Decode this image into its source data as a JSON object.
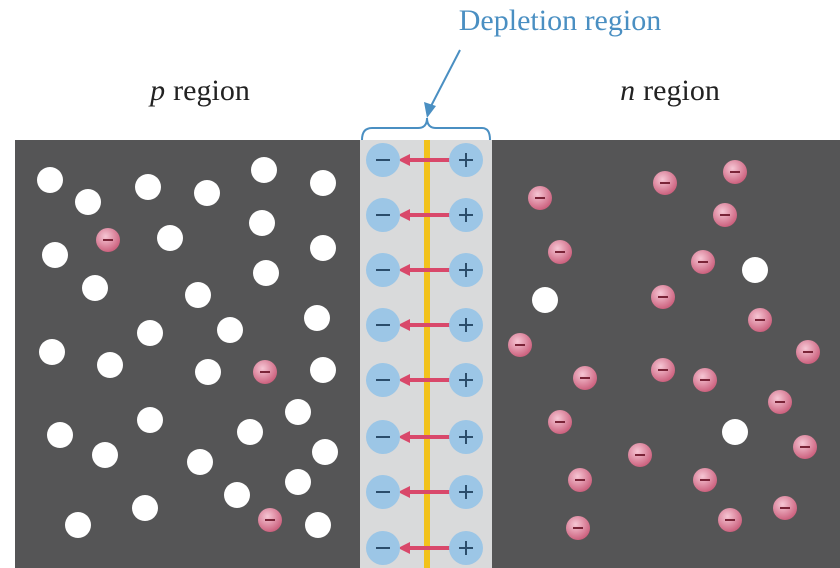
{
  "labels": {
    "depletion_region": "Depletion region",
    "p_region": {
      "italic": "p",
      "rest": "region"
    },
    "n_region": {
      "italic": "n",
      "rest": "region"
    }
  }
}
